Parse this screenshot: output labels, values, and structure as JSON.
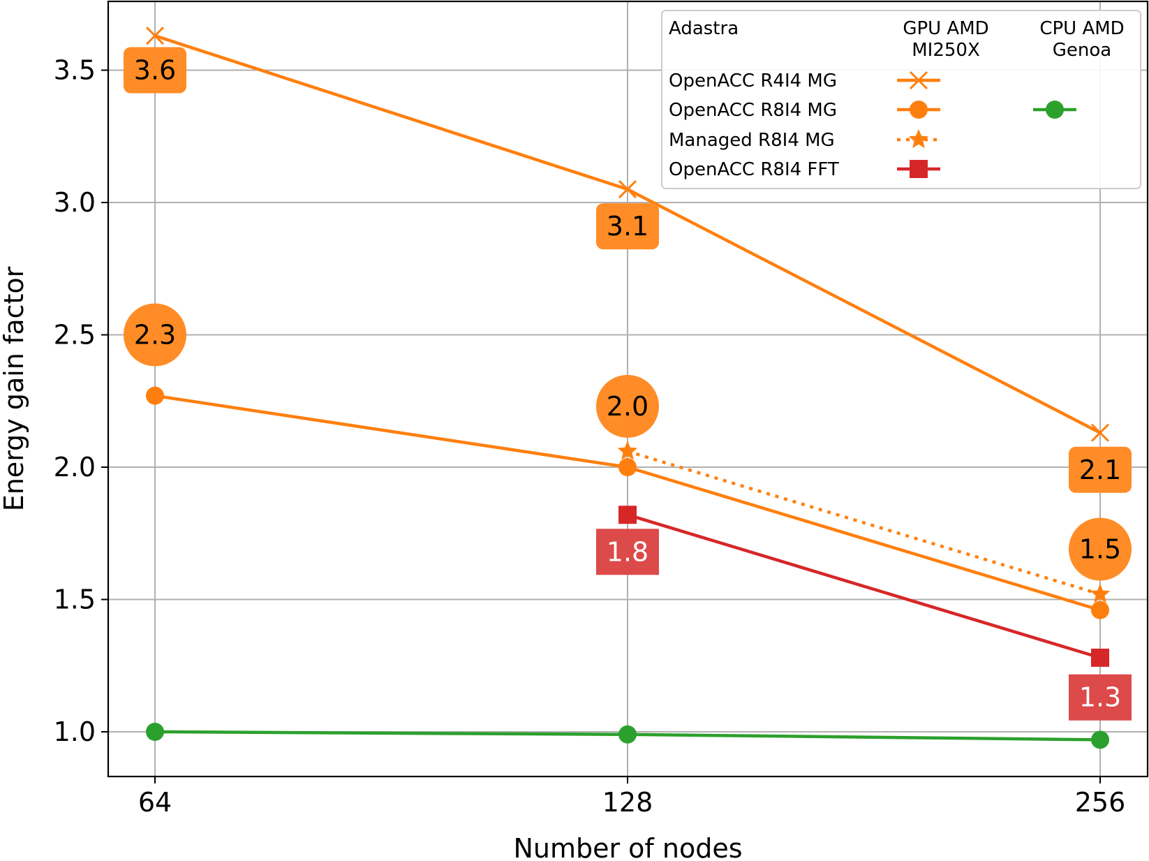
{
  "chart_data": {
    "type": "line",
    "xlabel": "Number of nodes",
    "ylabel": "Energy gain factor",
    "x": [
      64,
      128,
      256
    ],
    "x_scale": "log2",
    "x_tick_labels": [
      "64",
      "128",
      "256"
    ],
    "ylim": [
      0.85,
      3.75
    ],
    "y_ticks": [
      1.0,
      1.5,
      2.0,
      2.5,
      3.0,
      3.5
    ],
    "y_tick_labels": [
      "1.0",
      "1.5",
      "2.0",
      "2.5",
      "3.0",
      "3.5"
    ],
    "grid": true,
    "legend": {
      "placement": "top-right",
      "title": "Adastra",
      "column_headers": [
        "GPU AMD\nMI250X",
        "CPU AMD\nGenoa"
      ],
      "rows": [
        "OpenACC R4I4 MG",
        "OpenACC R8I4 MG",
        "Managed R8I4 MG",
        "OpenACC R8I4 FFT"
      ]
    },
    "series": [
      {
        "name": "OpenACC R4I4 MG",
        "hardware": "GPU AMD MI250X",
        "color": "#ff7f0e",
        "marker": "x",
        "linestyle": "solid",
        "x": [
          64,
          128,
          256
        ],
        "values": [
          3.63,
          3.05,
          2.13
        ],
        "labels": [
          "3.6",
          "3.1",
          "2.1"
        ]
      },
      {
        "name": "OpenACC R8I4 MG",
        "hardware": "GPU AMD MI250X",
        "color": "#ff7f0e",
        "marker": "circle",
        "linestyle": "solid",
        "x": [
          64,
          128,
          256
        ],
        "values": [
          2.27,
          2.0,
          1.46
        ],
        "labels": [
          "2.3",
          "2.0",
          "1.5"
        ]
      },
      {
        "name": "Managed R8I4 MG",
        "hardware": "GPU AMD MI250X",
        "color": "#ff7f0e",
        "marker": "star",
        "linestyle": "dotted",
        "x": [
          128,
          256
        ],
        "values": [
          2.06,
          1.52
        ],
        "labels": []
      },
      {
        "name": "OpenACC R8I4 FFT",
        "hardware": "GPU AMD MI250X",
        "color": "#d62728",
        "marker": "square",
        "linestyle": "solid",
        "x": [
          128,
          256
        ],
        "values": [
          1.82,
          1.28
        ],
        "labels": [
          "1.8",
          "1.3"
        ]
      },
      {
        "name": "OpenACC R8I4 MG",
        "hardware": "CPU AMD Genoa",
        "color": "#2ca02c",
        "marker": "circle",
        "linestyle": "solid",
        "x": [
          64,
          128,
          256
        ],
        "values": [
          1.0,
          0.99,
          0.97
        ],
        "labels": []
      }
    ],
    "annotations": [
      {
        "text": "3.6",
        "x": 64,
        "y": 3.5,
        "shape": "rounded-box",
        "color": "#ff8c26",
        "text_color": "#000000"
      },
      {
        "text": "3.1",
        "x": 128,
        "y": 2.91,
        "shape": "rounded-box",
        "color": "#ff8c26",
        "text_color": "#000000"
      },
      {
        "text": "2.1",
        "x": 256,
        "y": 1.99,
        "shape": "rounded-box",
        "color": "#ff8c26",
        "text_color": "#000000"
      },
      {
        "text": "2.3",
        "x": 64,
        "y": 2.5,
        "shape": "circle",
        "color": "#ff8c26",
        "text_color": "#000000"
      },
      {
        "text": "2.0",
        "x": 128,
        "y": 2.23,
        "shape": "circle",
        "color": "#ff8c26",
        "text_color": "#000000"
      },
      {
        "text": "1.5",
        "x": 256,
        "y": 1.69,
        "shape": "circle",
        "color": "#ff8c26",
        "text_color": "#000000"
      },
      {
        "text": "1.8",
        "x": 128,
        "y": 1.68,
        "shape": "box",
        "color": "#dc4a4a",
        "text_color": "#ffffff"
      },
      {
        "text": "1.3",
        "x": 256,
        "y": 1.13,
        "shape": "box",
        "color": "#dc4a4a",
        "text_color": "#ffffff"
      }
    ]
  }
}
